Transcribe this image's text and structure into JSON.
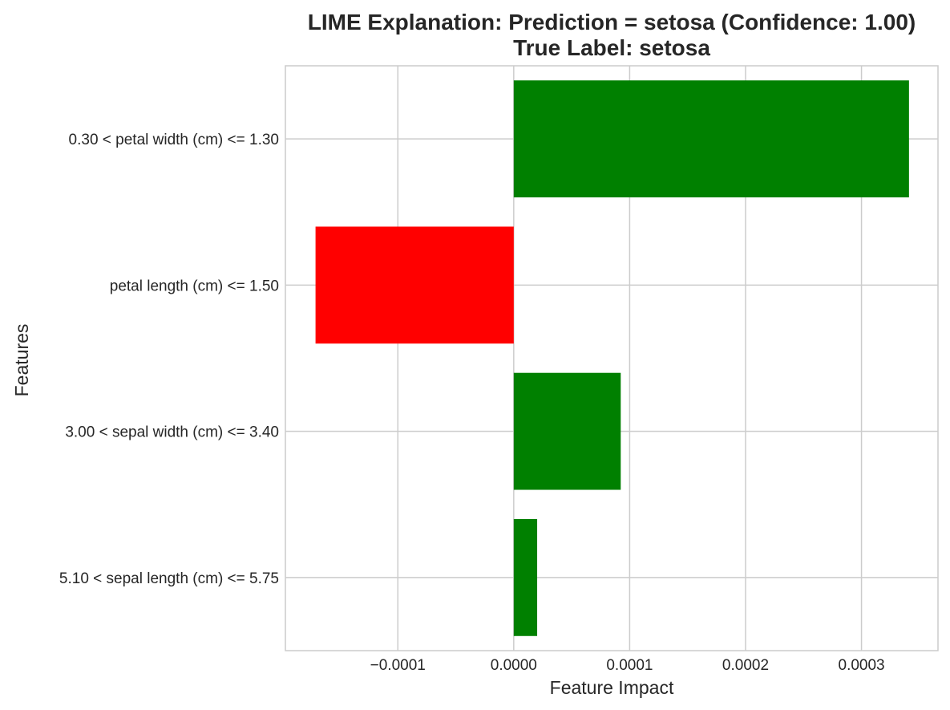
{
  "chart_data": {
    "type": "bar",
    "orientation": "horizontal",
    "title_line1": "LIME Explanation: Prediction = setosa (Confidence: 1.00)",
    "title_line2": "True Label: setosa",
    "xlabel": "Feature Impact",
    "ylabel": "Features",
    "xlim": [
      -0.000197,
      0.000366
    ],
    "grid": true,
    "x_ticks": [
      {
        "value": -0.0001,
        "label": "−0.0001"
      },
      {
        "value": 0.0,
        "label": "0.0000"
      },
      {
        "value": 0.0001,
        "label": "0.0001"
      },
      {
        "value": 0.0002,
        "label": "0.0002"
      },
      {
        "value": 0.0003,
        "label": "0.0003"
      }
    ],
    "categories": [
      "0.30 < petal width (cm) <= 1.30",
      "petal length (cm) <= 1.50",
      "3.00 < sepal width (cm) <= 3.40",
      "5.10 < sepal length (cm) <= 5.75"
    ],
    "values": [
      0.000341,
      -0.000171,
      9.23e-05,
      2.02e-05
    ],
    "colors": {
      "positive": "#008000",
      "negative": "#ff0000",
      "grid": "#cccccc",
      "spine": "#cccccc",
      "text": "#262626"
    }
  }
}
